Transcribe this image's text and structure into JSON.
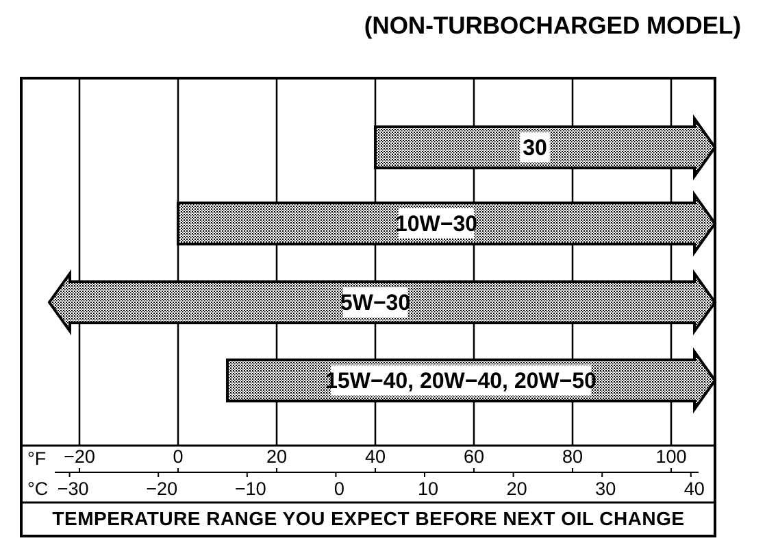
{
  "chart_data": {
    "type": "bar",
    "title": "(NON-TURBOCHARGED MODEL)",
    "xlabel": "TEMPERATURE RANGE YOU EXPECT BEFORE NEXT OIL CHANGE",
    "f_axis": {
      "unit": "°F",
      "ticks": [
        -20,
        0,
        20,
        40,
        60,
        80,
        100
      ],
      "tick_labels": [
        "−20",
        "0",
        "20",
        "40",
        "60",
        "80",
        "100"
      ],
      "range": [
        -30,
        110
      ]
    },
    "c_axis": {
      "unit": "°C",
      "ticks": [
        -30,
        -20,
        -10,
        0,
        10,
        20,
        30,
        40
      ],
      "tick_labels": [
        "−30",
        "−20",
        "−10",
        "0",
        "10",
        "20",
        "30",
        "40"
      ]
    },
    "grid": true,
    "series": [
      {
        "label": "30",
        "from_f": 40,
        "to_f": null,
        "open_left": false,
        "open_right": true
      },
      {
        "label": "10W−30",
        "from_f": 0,
        "to_f": null,
        "open_left": false,
        "open_right": true
      },
      {
        "label": "5W−30",
        "from_f": null,
        "to_f": null,
        "open_left": true,
        "open_right": true
      },
      {
        "label": "15W−40, 20W−40, 20W−50",
        "from_f": 10,
        "to_f": null,
        "open_left": false,
        "open_right": true
      }
    ]
  }
}
